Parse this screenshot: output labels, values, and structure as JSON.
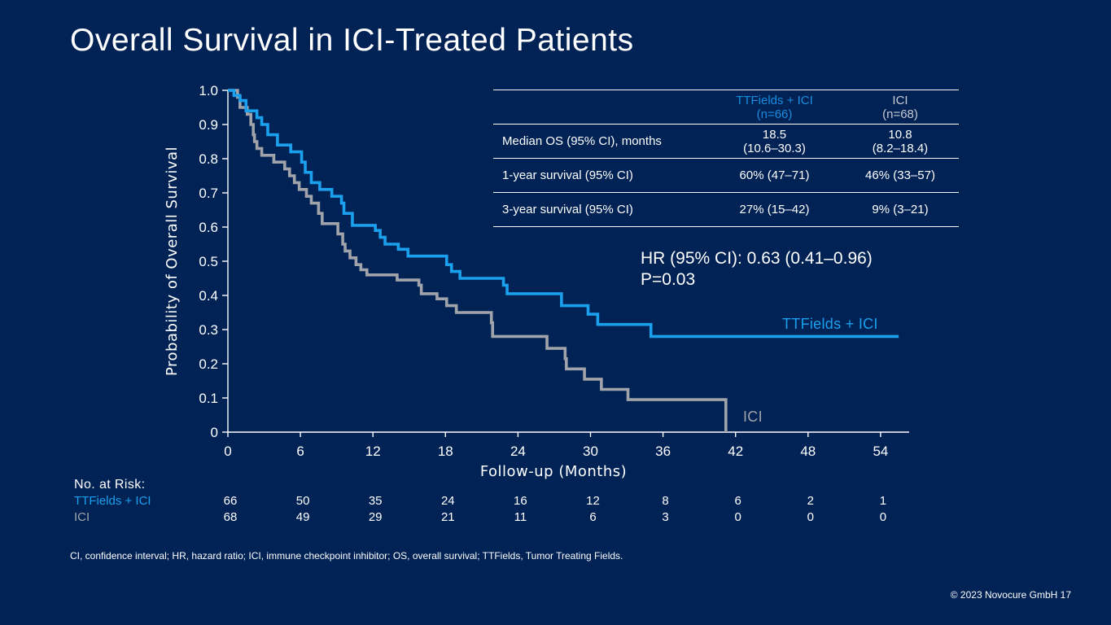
{
  "slide": {
    "title": "Overall Survival in ICI-Treated Patients",
    "footnote": "CI, confidence interval; HR, hazard ratio; ICI, immune checkpoint inhibitor; OS, overall survival; TTFields, Tumor Treating Fields.",
    "copyright": "© 2023 Novocure GmbH    17"
  },
  "stats_table": {
    "headers": [
      {
        "name": "TTFields + ICI",
        "n": "(n=66)"
      },
      {
        "name": "ICI",
        "n": "(n=68)"
      }
    ],
    "rows": [
      {
        "label": "Median OS (95% CI), months",
        "tt": "18.5",
        "tt_ci": "(10.6–30.3)",
        "ici": "10.8",
        "ici_ci": "(8.2–18.4)"
      },
      {
        "label": "1-year survival (95% CI)",
        "tt": "60% (47–71)",
        "tt_ci": "",
        "ici": "46% (33–57)",
        "ici_ci": ""
      },
      {
        "label": "3-year survival (95% CI)",
        "tt": "27% (15–42)",
        "tt_ci": "",
        "ici": "9% (3–21)",
        "ici_ci": ""
      }
    ]
  },
  "hazard": {
    "hr": "HR (95% CI): 0.63 (0.41–0.96)",
    "p": "P=0.03"
  },
  "chart_data": {
    "type": "line",
    "subtype": "kaplan-meier",
    "xlabel": "Follow-up (Months)",
    "ylabel": "Probability of Overall Survival",
    "xlim": [
      0,
      56
    ],
    "ylim": [
      0,
      1
    ],
    "x_ticks": [
      "0",
      "6",
      "12",
      "18",
      "24",
      "30",
      "36",
      "42",
      "48",
      "54"
    ],
    "y_ticks": [
      "0",
      "0.1",
      "0.2",
      "0.3",
      "0.4",
      "0.5",
      "0.6",
      "0.7",
      "0.8",
      "0.9",
      "1.0"
    ],
    "series": [
      {
        "name": "TTFields + ICI",
        "color": "#1aa0ec",
        "steps": [
          [
            0,
            1.0
          ],
          [
            0.5,
            0.985
          ],
          [
            1.0,
            0.97
          ],
          [
            1.5,
            0.94
          ],
          [
            2.4,
            0.92
          ],
          [
            2.8,
            0.9
          ],
          [
            3.3,
            0.87
          ],
          [
            4.1,
            0.84
          ],
          [
            5.2,
            0.82
          ],
          [
            6.1,
            0.79
          ],
          [
            6.4,
            0.76
          ],
          [
            6.9,
            0.73
          ],
          [
            7.6,
            0.71
          ],
          [
            8.6,
            0.69
          ],
          [
            9.4,
            0.67
          ],
          [
            9.6,
            0.64
          ],
          [
            10.3,
            0.605
          ],
          [
            12.2,
            0.59
          ],
          [
            12.6,
            0.57
          ],
          [
            13.0,
            0.55
          ],
          [
            14.1,
            0.535
          ],
          [
            14.9,
            0.515
          ],
          [
            18.1,
            0.49
          ],
          [
            18.5,
            0.47
          ],
          [
            19.2,
            0.45
          ],
          [
            22.8,
            0.43
          ],
          [
            23.1,
            0.405
          ],
          [
            27.6,
            0.37
          ],
          [
            29.8,
            0.345
          ],
          [
            30.6,
            0.315
          ],
          [
            35.0,
            0.28
          ]
        ],
        "end": 55.5,
        "label": "TTFields + ICI"
      },
      {
        "name": "ICI",
        "color": "#a0a4aa",
        "steps": [
          [
            0,
            1.0
          ],
          [
            0.8,
            0.98
          ],
          [
            1.0,
            0.95
          ],
          [
            1.6,
            0.93
          ],
          [
            1.9,
            0.9
          ],
          [
            2.1,
            0.87
          ],
          [
            2.2,
            0.85
          ],
          [
            2.4,
            0.83
          ],
          [
            2.8,
            0.81
          ],
          [
            3.8,
            0.79
          ],
          [
            4.7,
            0.77
          ],
          [
            5.1,
            0.75
          ],
          [
            5.5,
            0.73
          ],
          [
            5.9,
            0.71
          ],
          [
            6.5,
            0.69
          ],
          [
            6.9,
            0.67
          ],
          [
            7.5,
            0.64
          ],
          [
            7.8,
            0.61
          ],
          [
            9.1,
            0.58
          ],
          [
            9.5,
            0.55
          ],
          [
            9.7,
            0.53
          ],
          [
            10.1,
            0.51
          ],
          [
            10.6,
            0.49
          ],
          [
            11.0,
            0.475
          ],
          [
            11.5,
            0.46
          ],
          [
            14.0,
            0.445
          ],
          [
            15.8,
            0.43
          ],
          [
            16.0,
            0.405
          ],
          [
            17.3,
            0.39
          ],
          [
            18.1,
            0.37
          ],
          [
            18.9,
            0.35
          ],
          [
            21.8,
            0.32
          ],
          [
            21.9,
            0.28
          ],
          [
            26.4,
            0.245
          ],
          [
            27.9,
            0.215
          ],
          [
            28.0,
            0.185
          ],
          [
            29.5,
            0.155
          ],
          [
            30.9,
            0.125
          ],
          [
            33.1,
            0.095
          ],
          [
            41.2,
            0.0
          ]
        ],
        "end": 41.2,
        "label": "ICI"
      }
    ]
  },
  "at_risk": {
    "title": "No. at Risk:",
    "rows": [
      {
        "name": "TTFields + ICI",
        "values": [
          "66",
          "50",
          "35",
          "24",
          "16",
          "12",
          "8",
          "6",
          "2",
          "1"
        ]
      },
      {
        "name": "ICI",
        "values": [
          "68",
          "49",
          "29",
          "21",
          "11",
          "6",
          "3",
          "0",
          "0",
          "0"
        ]
      }
    ]
  }
}
